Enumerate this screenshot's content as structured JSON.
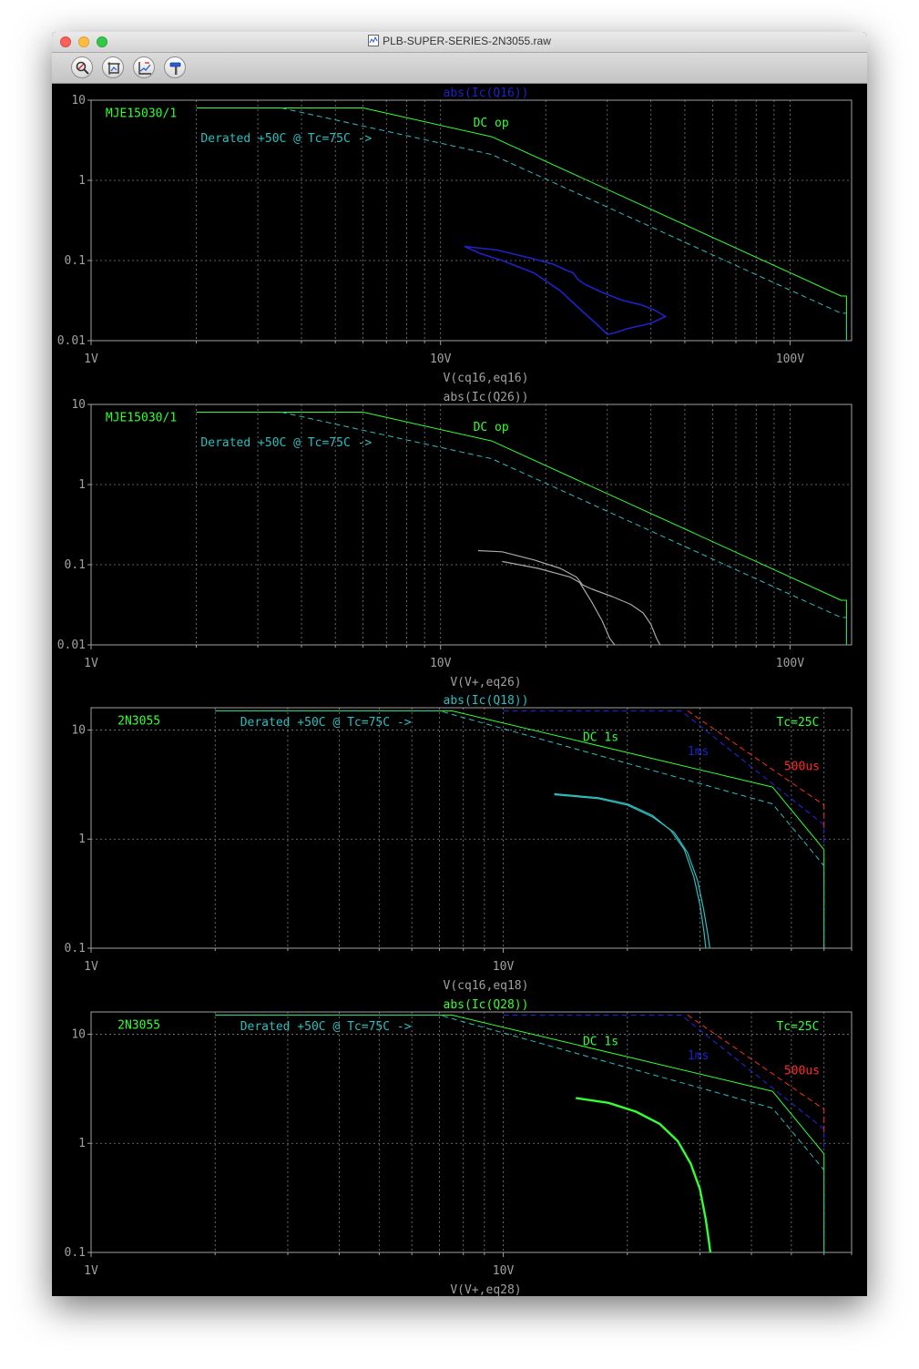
{
  "window": {
    "title": "PLB-SUPER-SERIES-2N3055.raw",
    "colors": {
      "background": "#000000",
      "grid": "#808080",
      "axis": "#a0a0a0"
    }
  },
  "toolbar": {
    "buttons": [
      {
        "name": "zoom-button",
        "icon": "magnifier-icon"
      },
      {
        "name": "fit-button",
        "icon": "crop-icon"
      },
      {
        "name": "autorange-button",
        "icon": "chart-icon"
      },
      {
        "name": "probe-button",
        "icon": "hammer-icon"
      }
    ]
  },
  "chart_data": [
    {
      "type": "line",
      "title": "abs(Ic(Q16))",
      "title_color": "#1f22c8",
      "xlabel": "V(cq16,eq16)",
      "x_scale": "log",
      "y_scale": "log",
      "xlim": [
        1,
        150
      ],
      "ylim": [
        0.01,
        10
      ],
      "x_ticks": [
        {
          "v": 1,
          "label": "1V"
        },
        {
          "v": 10,
          "label": "10V"
        },
        {
          "v": 100,
          "label": "100V"
        }
      ],
      "y_ticks": [
        {
          "v": 10,
          "label": "10"
        },
        {
          "v": 1,
          "label": "1"
        },
        {
          "v": 0.1,
          "label": "0.1"
        },
        {
          "v": 0.01,
          "label": "0.01"
        }
      ],
      "labels": [
        {
          "text": "MJE15030/1",
          "color": "#33ff33",
          "x": 1.1,
          "y": 6.2
        },
        {
          "text": "DC op",
          "color": "#33ff33",
          "x": 12.4,
          "y": 4.7
        },
        {
          "text": "Derated +50C @ Tc=75C ->",
          "color": "#2ebdbd",
          "x": 2.06,
          "y": 3.0
        }
      ],
      "grid": true,
      "series": [
        {
          "color": "#33ff33",
          "width": 1,
          "dashed": false,
          "points": [
            [
              2,
              8
            ],
            [
              6,
              8
            ],
            [
              14,
              3.5
            ],
            [
              140,
              0.036
            ],
            [
              145,
              0.036
            ],
            [
              145,
              0.01
            ]
          ]
        },
        {
          "color": "#2ebdbd",
          "width": 1,
          "dashed": true,
          "points": [
            [
              3.5,
              8
            ],
            [
              14,
              2.1
            ],
            [
              140,
              0.022
            ],
            [
              145,
              0.022
            ],
            [
              145,
              0.01
            ]
          ]
        },
        {
          "color": "#1f22c8",
          "width": 1.6,
          "dashed": false,
          "points": [
            [
              11.7,
              0.15
            ],
            [
              14.5,
              0.135
            ],
            [
              18,
              0.108
            ],
            [
              21,
              0.09
            ],
            [
              23,
              0.075
            ],
            [
              24,
              0.07
            ],
            [
              24.7,
              0.058
            ],
            [
              26,
              0.05
            ],
            [
              29,
              0.04
            ],
            [
              33,
              0.032
            ],
            [
              37.5,
              0.028
            ],
            [
              41,
              0.024
            ],
            [
              44,
              0.02
            ],
            [
              40,
              0.0165
            ],
            [
              34,
              0.014
            ],
            [
              31.5,
              0.0125
            ],
            [
              30,
              0.012
            ],
            [
              28,
              0.016
            ],
            [
              25,
              0.025
            ],
            [
              22,
              0.042
            ],
            [
              18.5,
              0.07
            ],
            [
              15,
              0.1
            ],
            [
              13,
              0.122
            ],
            [
              11.7,
              0.15
            ]
          ]
        }
      ]
    },
    {
      "type": "line",
      "title": "abs(Ic(Q26))",
      "title_color": "#a0a0a0",
      "xlabel": "V(V+,eq26)",
      "x_scale": "log",
      "y_scale": "log",
      "xlim": [
        1,
        150
      ],
      "ylim": [
        0.01,
        10
      ],
      "x_ticks": [
        {
          "v": 1,
          "label": "1V"
        },
        {
          "v": 10,
          "label": "10V"
        },
        {
          "v": 100,
          "label": "100V"
        }
      ],
      "y_ticks": [
        {
          "v": 10,
          "label": "10"
        },
        {
          "v": 1,
          "label": "1"
        },
        {
          "v": 0.1,
          "label": "0.1"
        },
        {
          "v": 0.01,
          "label": "0.01"
        }
      ],
      "labels": [
        {
          "text": "MJE15030/1",
          "color": "#33ff33",
          "x": 1.1,
          "y": 6.2
        },
        {
          "text": "DC op",
          "color": "#33ff33",
          "x": 12.4,
          "y": 4.7
        },
        {
          "text": "Derated +50C @ Tc=75C ->",
          "color": "#2ebdbd",
          "x": 2.06,
          "y": 3.0
        }
      ],
      "grid": true,
      "series": [
        {
          "color": "#33ff33",
          "width": 1,
          "dashed": false,
          "points": [
            [
              2,
              8
            ],
            [
              6,
              8
            ],
            [
              14,
              3.5
            ],
            [
              140,
              0.036
            ],
            [
              145,
              0.036
            ],
            [
              145,
              0.01
            ]
          ]
        },
        {
          "color": "#2ebdbd",
          "width": 1,
          "dashed": true,
          "points": [
            [
              3.5,
              8
            ],
            [
              14,
              2.1
            ],
            [
              140,
              0.022
            ],
            [
              145,
              0.022
            ],
            [
              145,
              0.01
            ]
          ]
        },
        {
          "color": "#a8a8a8",
          "width": 1.2,
          "dashed": false,
          "points": [
            [
              12.8,
              0.15
            ],
            [
              15,
              0.145
            ],
            [
              18.5,
              0.115
            ],
            [
              22,
              0.09
            ],
            [
              24.5,
              0.07
            ],
            [
              25.5,
              0.056
            ],
            [
              27,
              0.05
            ],
            [
              31,
              0.04
            ],
            [
              35,
              0.032
            ],
            [
              38,
              0.025
            ],
            [
              40,
              0.018
            ],
            [
              41.5,
              0.012
            ],
            [
              42.5,
              0.01
            ]
          ]
        },
        {
          "color": "#a8a8a8",
          "width": 1.2,
          "dashed": false,
          "points": [
            [
              15,
              0.11
            ],
            [
              19,
              0.09
            ],
            [
              23.5,
              0.07
            ],
            [
              25,
              0.06
            ],
            [
              27,
              0.035
            ],
            [
              29,
              0.02
            ],
            [
              30.5,
              0.012
            ],
            [
              31.5,
              0.01
            ]
          ]
        }
      ]
    },
    {
      "type": "line",
      "title": "abs(Ic(Q18))",
      "title_color": "#2ebdbd",
      "xlabel": "V(cq16,eq18)",
      "x_scale": "log",
      "y_scale": "log",
      "xlim": [
        1,
        70
      ],
      "ylim": [
        0.1,
        16
      ],
      "x_ticks": [
        {
          "v": 1,
          "label": "1V"
        },
        {
          "v": 10,
          "label": "10V"
        }
      ],
      "y_ticks": [
        {
          "v": 10,
          "label": "10"
        },
        {
          "v": 1,
          "label": "1"
        },
        {
          "v": 0.1,
          "label": "0.1"
        }
      ],
      "labels": [
        {
          "text": "2N3055",
          "color": "#33ff33",
          "x": 1.16,
          "y": 11.2
        },
        {
          "text": "Derated +50C @ Tc=75C ->",
          "color": "#2ebdbd",
          "x": 2.3,
          "y": 10.9
        },
        {
          "text": "DC 1s",
          "color": "#33ff33",
          "x": 15.6,
          "y": 7.9
        },
        {
          "text": "1ms",
          "color": "#1f22c8",
          "x": 28,
          "y": 5.9
        },
        {
          "text": "Tc=25C",
          "color": "#33ff33",
          "x": 46,
          "y": 10.9
        },
        {
          "text": "500us",
          "color": "#ff2a2a",
          "x": 48,
          "y": 4.3
        }
      ],
      "grid": true,
      "series": [
        {
          "color": "#33ff33",
          "width": 1,
          "dashed": false,
          "points": [
            [
              2,
              15
            ],
            [
              7.5,
              15
            ],
            [
              45,
              3
            ],
            [
              60,
              0.8
            ],
            [
              60,
              0.1
            ]
          ]
        },
        {
          "color": "#2ebdbd",
          "width": 1,
          "dashed": true,
          "points": [
            [
              2,
              15
            ],
            [
              7,
              15
            ],
            [
              45,
              2.1
            ],
            [
              60,
              0.57
            ],
            [
              60,
              0.1
            ]
          ]
        },
        {
          "color": "#2525e6",
          "width": 1,
          "dashed": true,
          "points": [
            [
              10,
              15
            ],
            [
              27,
              15
            ],
            [
              60,
              1.35
            ],
            [
              60,
              0.9
            ]
          ]
        },
        {
          "color": "#ff2a2a",
          "width": 1,
          "dashed": true,
          "points": [
            [
              28,
              15
            ],
            [
              60,
              2.05
            ],
            [
              60,
              1.3
            ]
          ]
        },
        {
          "color": "#2ebdbd",
          "width": 1.2,
          "dashed": false,
          "points": [
            [
              13.3,
              2.6
            ],
            [
              17,
              2.4
            ],
            [
              20,
              2.1
            ],
            [
              23,
              1.65
            ],
            [
              25.5,
              1.2
            ],
            [
              27.5,
              0.8
            ],
            [
              29,
              0.45
            ],
            [
              30,
              0.25
            ],
            [
              30.7,
              0.14
            ],
            [
              31,
              0.1
            ]
          ]
        },
        {
          "color": "#2ebdbd",
          "width": 1.2,
          "dashed": false,
          "points": [
            [
              13.3,
              2.55
            ],
            [
              17,
              2.35
            ],
            [
              20,
              2.05
            ],
            [
              23,
              1.6
            ],
            [
              26,
              1.15
            ],
            [
              28,
              0.75
            ],
            [
              29.6,
              0.42
            ],
            [
              30.6,
              0.23
            ],
            [
              31.4,
              0.13
            ],
            [
              31.7,
              0.1
            ]
          ]
        }
      ]
    },
    {
      "type": "line",
      "title": "abs(Ic(Q28))",
      "title_color": "#33ff33",
      "xlabel": "V(V+,eq28)",
      "x_scale": "log",
      "y_scale": "log",
      "xlim": [
        1,
        70
      ],
      "ylim": [
        0.1,
        16
      ],
      "x_ticks": [
        {
          "v": 1,
          "label": "1V"
        },
        {
          "v": 10,
          "label": "10V"
        }
      ],
      "y_ticks": [
        {
          "v": 10,
          "label": "10"
        },
        {
          "v": 1,
          "label": "1"
        },
        {
          "v": 0.1,
          "label": "0.1"
        }
      ],
      "labels": [
        {
          "text": "2N3055",
          "color": "#33ff33",
          "x": 1.16,
          "y": 11.2
        },
        {
          "text": "Derated +50C @ Tc=75C ->",
          "color": "#2ebdbd",
          "x": 2.3,
          "y": 10.9
        },
        {
          "text": "DC 1s",
          "color": "#33ff33",
          "x": 15.6,
          "y": 7.9
        },
        {
          "text": "1ms",
          "color": "#1f22c8",
          "x": 28,
          "y": 5.9
        },
        {
          "text": "Tc=25C",
          "color": "#33ff33",
          "x": 46,
          "y": 10.9
        },
        {
          "text": "500us",
          "color": "#ff2a2a",
          "x": 48,
          "y": 4.3
        }
      ],
      "grid": true,
      "series": [
        {
          "color": "#33ff33",
          "width": 1,
          "dashed": false,
          "points": [
            [
              2,
              15
            ],
            [
              7.5,
              15
            ],
            [
              45,
              3
            ],
            [
              60,
              0.8
            ],
            [
              60,
              0.1
            ]
          ]
        },
        {
          "color": "#2ebdbd",
          "width": 1,
          "dashed": true,
          "points": [
            [
              2,
              15
            ],
            [
              7,
              15
            ],
            [
              45,
              2.1
            ],
            [
              60,
              0.57
            ],
            [
              60,
              0.1
            ]
          ]
        },
        {
          "color": "#2525e6",
          "width": 1,
          "dashed": true,
          "points": [
            [
              10,
              15
            ],
            [
              27,
              15
            ],
            [
              60,
              1.35
            ],
            [
              60,
              0.9
            ]
          ]
        },
        {
          "color": "#ff2a2a",
          "width": 1,
          "dashed": true,
          "points": [
            [
              28,
              15
            ],
            [
              60,
              2.05
            ],
            [
              60,
              1.3
            ]
          ]
        },
        {
          "color": "#33ff33",
          "width": 2.4,
          "dashed": false,
          "points": [
            [
              15,
              2.6
            ],
            [
              18,
              2.35
            ],
            [
              21,
              1.95
            ],
            [
              24,
              1.5
            ],
            [
              26.5,
              1.05
            ],
            [
              28.5,
              0.65
            ],
            [
              30,
              0.38
            ],
            [
              31,
              0.2
            ],
            [
              31.6,
              0.12
            ],
            [
              31.8,
              0.1
            ]
          ]
        }
      ]
    }
  ]
}
